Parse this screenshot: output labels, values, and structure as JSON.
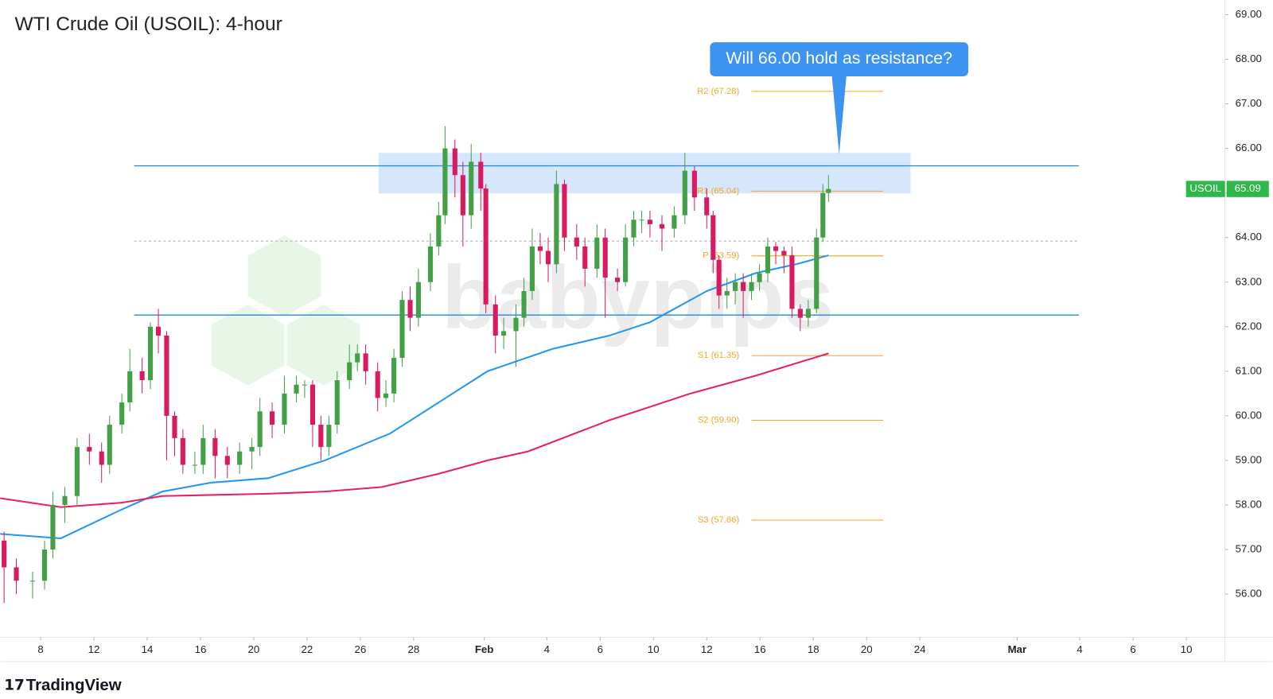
{
  "chart_data": {
    "type": "candlestick",
    "title": "WTI Crude Oil (USOIL): 4-hour",
    "x": [
      -1.37,
      -0.91,
      -0.3,
      0.15,
      0.46,
      0.91,
      1.37,
      1.83,
      2.29,
      2.59,
      3.05,
      3.35,
      3.81,
      4.12,
      4.42,
      4.73,
      5.03,
      5.34,
      5.79,
      6.1,
      6.55,
      7.01,
      7.47,
      7.93,
      8.23,
      8.69,
      9.15,
      9.6,
      9.91,
      10.21,
      10.52,
      10.82,
      11.13,
      11.59,
      11.89,
      12.2,
      12.65,
      12.96,
      13.26,
      13.57,
      13.87,
      14.18,
      14.63,
      14.94,
      15.18,
      15.55,
      15.85,
      16.16,
      16.52,
      16.71,
      17.07,
      17.38,
      17.84,
      18.14,
      18.45,
      18.75,
      19.05,
      19.36,
      19.66,
      20.12,
      20.43,
      20.88,
      21.19,
      21.65,
      21.95,
      22.26,
      22.56,
      22.87,
      23.32,
      23.78,
      24.18,
      24.54,
      25.0,
      25.24,
      25.46,
      25.76,
      26.07,
      26.37,
      26.68,
      26.98,
      27.29,
      27.59,
      27.9,
      28.2,
      28.51,
      28.81,
      29.12,
      29.36,
      29.57
    ],
    "open": [
      57.2,
      56.6,
      56.3,
      56.3,
      57.0,
      58.0,
      58.2,
      59.3,
      59.2,
      58.9,
      59.8,
      60.3,
      61.0,
      60.8,
      62.0,
      61.8,
      60.0,
      59.5,
      58.9,
      58.9,
      59.5,
      59.1,
      58.9,
      59.2,
      59.3,
      60.1,
      59.8,
      60.5,
      60.7,
      60.7,
      59.8,
      59.3,
      59.8,
      60.8,
      61.2,
      61.4,
      61.0,
      60.4,
      60.5,
      61.3,
      62.6,
      62.2,
      63.0,
      63.8,
      64.5,
      66.0,
      65.4,
      64.5,
      65.7,
      65.1,
      62.5,
      61.8,
      61.9,
      62.2,
      62.8,
      63.8,
      63.7,
      63.4,
      65.2,
      64.0,
      63.8,
      63.3,
      64.0,
      63.1,
      63.0,
      64.0,
      64.4,
      64.4,
      64.3,
      64.2,
      64.5,
      65.5,
      64.9,
      64.5,
      63.5,
      62.7,
      62.8,
      63.0,
      62.8,
      63.0,
      63.2,
      63.8,
      63.7,
      63.6,
      62.4,
      62.2,
      62.4,
      64.0,
      65.0
    ],
    "high": [
      57.4,
      56.8,
      56.5,
      57.2,
      58.3,
      58.4,
      59.5,
      59.6,
      59.4,
      60.0,
      60.5,
      61.5,
      61.3,
      62.1,
      62.4,
      61.9,
      60.1,
      59.7,
      59.2,
      59.8,
      59.7,
      59.3,
      59.4,
      59.5,
      60.4,
      60.3,
      60.9,
      60.9,
      60.8,
      60.8,
      60.0,
      60.0,
      61.0,
      61.6,
      61.6,
      61.6,
      61.2,
      60.8,
      61.5,
      62.8,
      62.9,
      63.3,
      64.1,
      64.8,
      66.5,
      66.2,
      65.7,
      66.1,
      65.9,
      65.2,
      62.7,
      62.2,
      62.5,
      63.1,
      64.2,
      64.1,
      64.0,
      65.5,
      65.3,
      64.3,
      64.0,
      64.3,
      64.2,
      63.3,
      64.3,
      64.6,
      64.6,
      64.6,
      64.5,
      64.7,
      65.9,
      65.6,
      65.1,
      64.6,
      63.6,
      63.1,
      63.2,
      63.2,
      63.2,
      63.4,
      64.0,
      63.9,
      63.8,
      63.8,
      62.5,
      62.6,
      64.2,
      65.2,
      65.4
    ],
    "low": [
      55.8,
      56.0,
      55.9,
      56.1,
      56.8,
      57.6,
      58.0,
      58.9,
      58.5,
      58.7,
      59.6,
      60.1,
      60.5,
      60.6,
      61.4,
      59.0,
      59.1,
      58.7,
      58.7,
      58.7,
      58.6,
      58.6,
      58.7,
      58.8,
      59.1,
      59.5,
      59.6,
      60.3,
      60.4,
      59.3,
      59.0,
      59.1,
      59.6,
      60.6,
      61.0,
      60.7,
      60.1,
      60.2,
      60.3,
      61.1,
      61.9,
      62.0,
      62.8,
      63.6,
      64.3,
      64.9,
      63.8,
      64.2,
      64.6,
      62.3,
      61.4,
      61.5,
      61.1,
      62.0,
      62.6,
      63.4,
      63.0,
      63.2,
      63.7,
      63.5,
      62.9,
      63.1,
      62.2,
      62.8,
      62.9,
      63.8,
      64.1,
      64.0,
      63.7,
      64.0,
      64.3,
      64.6,
      64.2,
      63.2,
      62.4,
      62.4,
      62.5,
      62.2,
      62.6,
      62.8,
      63.0,
      63.4,
      63.2,
      62.2,
      61.9,
      62.0,
      62.3,
      63.9,
      64.8
    ],
    "close": [
      56.6,
      56.3,
      56.3,
      57.0,
      58.0,
      58.2,
      59.3,
      59.2,
      58.9,
      59.8,
      60.3,
      61.0,
      60.8,
      62.0,
      61.8,
      60.0,
      59.5,
      58.9,
      58.9,
      59.5,
      59.1,
      58.9,
      59.2,
      59.3,
      60.1,
      59.8,
      60.5,
      60.7,
      60.7,
      59.8,
      59.3,
      59.8,
      60.8,
      61.2,
      61.4,
      61.0,
      60.4,
      60.5,
      61.3,
      62.6,
      62.2,
      63.0,
      63.8,
      64.5,
      66.0,
      65.4,
      64.5,
      65.7,
      65.1,
      62.5,
      61.8,
      61.9,
      62.2,
      62.8,
      63.8,
      63.7,
      63.4,
      65.2,
      64.0,
      63.8,
      63.3,
      64.0,
      63.1,
      63.0,
      64.0,
      64.4,
      64.4,
      64.3,
      64.2,
      64.5,
      65.5,
      64.9,
      64.5,
      63.5,
      62.7,
      62.8,
      63.0,
      62.8,
      63.0,
      63.2,
      63.8,
      63.7,
      63.6,
      62.4,
      62.2,
      62.4,
      64.0,
      65.0,
      65.09
    ],
    "up_color": "#43a047",
    "down_color": "#d81b60",
    "xlim": [
      -1.52,
      44.45
    ],
    "xticks": [
      {
        "value": 0,
        "label": "8"
      },
      {
        "value": 2,
        "label": "12"
      },
      {
        "value": 4,
        "label": "14"
      },
      {
        "value": 6,
        "label": "16"
      },
      {
        "value": 8,
        "label": "20"
      },
      {
        "value": 10,
        "label": "22"
      },
      {
        "value": 12,
        "label": "26"
      },
      {
        "value": 14,
        "label": "28"
      },
      {
        "value": 16.65,
        "label": "Feb"
      },
      {
        "value": 19,
        "label": "4"
      },
      {
        "value": 21,
        "label": "6"
      },
      {
        "value": 23,
        "label": "10"
      },
      {
        "value": 25,
        "label": "12"
      },
      {
        "value": 27,
        "label": "16"
      },
      {
        "value": 29,
        "label": "18"
      },
      {
        "value": 31,
        "label": "20"
      },
      {
        "value": 33,
        "label": "24"
      },
      {
        "value": 36.65,
        "label": "Mar"
      },
      {
        "value": 39,
        "label": "4"
      },
      {
        "value": 41,
        "label": "6"
      },
      {
        "value": 43,
        "label": "10"
      }
    ],
    "ylim": [
      55.03,
      69.33
    ],
    "yticks": [
      {
        "value": 56,
        "label": "56.00"
      },
      {
        "value": 57,
        "label": "57.00"
      },
      {
        "value": 58,
        "label": "58.00"
      },
      {
        "value": 59,
        "label": "59.00"
      },
      {
        "value": 60,
        "label": "60.00"
      },
      {
        "value": 61,
        "label": "61.00"
      },
      {
        "value": 62,
        "label": "62.00"
      },
      {
        "value": 63,
        "label": "63.00"
      },
      {
        "value": 64,
        "label": "64.00"
      },
      {
        "value": 65,
        "label": "65.00"
      },
      {
        "value": 66,
        "label": "66.00"
      },
      {
        "value": 67,
        "label": "67.00"
      },
      {
        "value": 68,
        "label": "68.00"
      },
      {
        "value": 69,
        "label": "69.00"
      }
    ],
    "moving_averages": [
      {
        "color": "#2196f3",
        "x": [
          -1.52,
          0.76,
          3.05,
          4.57,
          6.4,
          8.54,
          10.67,
          13.11,
          14.94,
          16.77,
          19.21,
          21.34,
          22.87,
          25.0,
          26.83,
          28.35,
          29.57
        ],
        "values": [
          57.35,
          57.25,
          57.9,
          58.3,
          58.5,
          58.6,
          59.0,
          59.6,
          60.3,
          61.0,
          61.5,
          61.8,
          62.1,
          62.8,
          63.2,
          63.4,
          63.6
        ]
      },
      {
        "color": "#e91e63",
        "x": [
          -1.52,
          0.76,
          3.05,
          4.57,
          8.54,
          10.67,
          12.8,
          14.94,
          16.77,
          18.29,
          21.34,
          24.39,
          26.83,
          29.57
        ],
        "values": [
          58.15,
          57.95,
          58.05,
          58.2,
          58.25,
          58.3,
          58.4,
          58.7,
          59.0,
          59.2,
          59.9,
          60.5,
          60.9,
          61.4
        ]
      }
    ],
    "levels": [
      {
        "value": 65.61,
        "color": "#1e88e5"
      },
      {
        "value": 62.26,
        "color": "#1e88e5"
      }
    ],
    "dashed_level": {
      "value": 63.92,
      "color": "#b0b0b0"
    },
    "zone": {
      "x": [
        12.68,
        32.65
      ],
      "y": [
        64.99,
        65.9
      ],
      "color": "#cfe3fb"
    },
    "pivots": {
      "color": "#f5a623",
      "x": [
        26.68,
        31.62
      ],
      "levels": [
        {
          "value": 67.28,
          "label": "R2 (67.28)"
        },
        {
          "value": 65.04,
          "label": "R1 (65.04)"
        },
        {
          "value": 63.59,
          "label": "P (63.59)"
        },
        {
          "value": 61.35,
          "label": "S1 (61.35)"
        },
        {
          "value": 59.9,
          "label": "S2 (59.90)"
        },
        {
          "value": 57.66,
          "label": "S3 (57.66)"
        }
      ]
    },
    "annotation": "Will 66.00 hold as resistance?",
    "last_price": {
      "symbol": "USOIL",
      "value": 65.09,
      "color": "#2db84a"
    }
  },
  "branding": {
    "watermark": "babypips",
    "logo": "TradingView"
  }
}
